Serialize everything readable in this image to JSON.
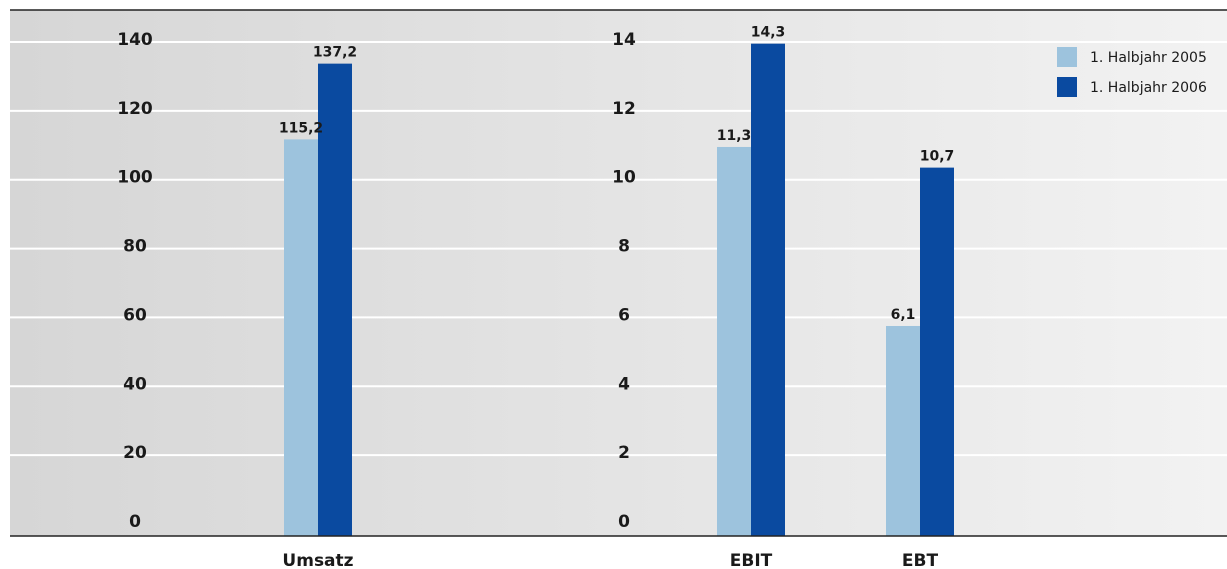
{
  "colors": {
    "series_2005": "#9dc3dd",
    "series_2006": "#0a4aa0",
    "bg_left": "#d6d6d6",
    "bg_right": "#f2f2f2",
    "gridline": "#ffffff",
    "axis": "#222222"
  },
  "chart_data": [
    {
      "type": "bar",
      "categories": [
        "Umsatz"
      ],
      "ylim": [
        0,
        140
      ],
      "yticks": [
        "0",
        "20",
        "40",
        "60",
        "80",
        "100",
        "120",
        "140"
      ],
      "series": [
        {
          "name": "1. Halbjahr 2005",
          "values": [
            115.2
          ],
          "labels": [
            "115,2"
          ]
        },
        {
          "name": "1. Halbjahr 2006",
          "values": [
            137.2
          ],
          "labels": [
            "137,2"
          ]
        }
      ],
      "legend": "top-right",
      "grid": true
    },
    {
      "type": "bar",
      "categories": [
        "EBIT",
        "EBT"
      ],
      "ylim": [
        0,
        14
      ],
      "yticks": [
        "0",
        "2",
        "4",
        "6",
        "8",
        "10",
        "12",
        "14"
      ],
      "series": [
        {
          "name": "1. Halbjahr 2005",
          "values": [
            11.3,
            6.1
          ],
          "labels": [
            "11,3",
            "6,1"
          ]
        },
        {
          "name": "1. Halbjahr 2006",
          "values": [
            14.3,
            10.7
          ],
          "labels": [
            "14,3",
            "10,7"
          ]
        }
      ],
      "legend": "top-right",
      "grid": true
    }
  ]
}
